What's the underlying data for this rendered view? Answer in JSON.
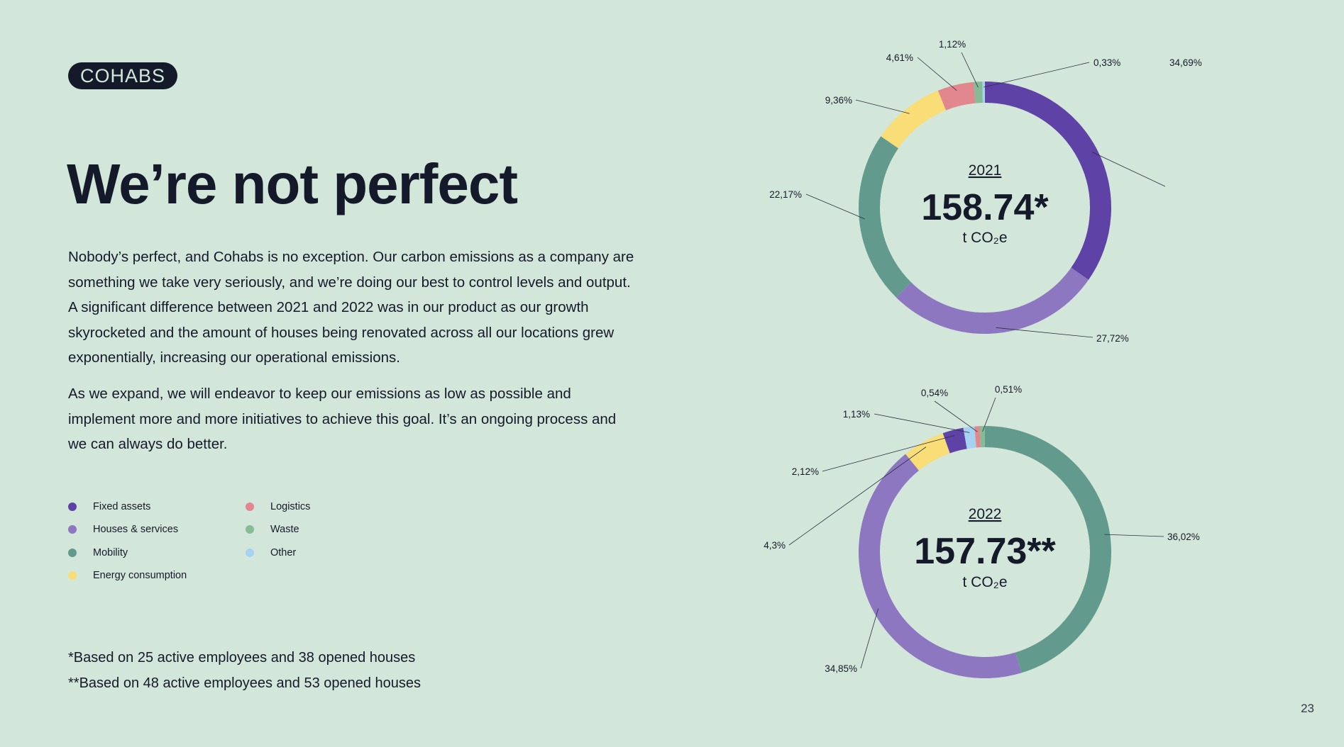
{
  "logo": "COHABS",
  "title": "We’re not perfect",
  "paragraphs": [
    "Nobody’s perfect, and Cohabs is no exception. Our carbon emissions as a company are something we take very seriously, and we’re doing our best to control levels and output. A significant difference between 2021 and 2022 was in our product as our growth skyrocketed and the amount of houses being renovated across all our locations grew exponentially, increasing our operational emissions.",
    "As we expand, we will endeavor to keep our emissions as low as possible and implement more and more initiatives to achieve this goal. It’s an ongoing process and we can always do better."
  ],
  "legend": [
    {
      "label": "Fixed assets",
      "color": "#5e42a6"
    },
    {
      "label": "Houses & services",
      "color": "#8c77c0"
    },
    {
      "label": "Mobility",
      "color": "#629b8d"
    },
    {
      "label": "Energy consumption",
      "color": "#f9dd77"
    },
    {
      "label": "Logistics",
      "color": "#e3878f"
    },
    {
      "label": "Waste",
      "color": "#86bc95"
    },
    {
      "label": "Other",
      "color": "#a4d2f0"
    }
  ],
  "footnotes": [
    "*Based on 25 active employees and 38 opened houses",
    "**Based on 48 active employees and 53 opened houses"
  ],
  "page_number": "23",
  "chart_data": [
    {
      "type": "pie",
      "donut": true,
      "year": "2021",
      "total": "158.74*",
      "unit": "t CO₂e",
      "slices": [
        {
          "category": "Fixed assets",
          "value": 34.69,
          "label": "34,69%"
        },
        {
          "category": "Houses & services",
          "value": 27.72,
          "label": "27,72%"
        },
        {
          "category": "Mobility",
          "value": 22.17,
          "label": "22,17%"
        },
        {
          "category": "Energy consumption",
          "value": 9.36,
          "label": "9,36%"
        },
        {
          "category": "Logistics",
          "value": 4.61,
          "label": "4,61%"
        },
        {
          "category": "Waste",
          "value": 1.12,
          "label": "1,12%"
        },
        {
          "category": "Other",
          "value": 0.33,
          "label": "0,33%"
        }
      ]
    },
    {
      "type": "pie",
      "donut": true,
      "year": "2022",
      "total": "157.73**",
      "unit": "t CO₂e",
      "slices": [
        {
          "category": "Mobility",
          "value": 36.02,
          "label": "36,02%"
        },
        {
          "category": "Houses & services",
          "value": 34.85,
          "label": "34,85%"
        },
        {
          "category": "Energy consumption",
          "value": 4.3,
          "label": "4,3%"
        },
        {
          "category": "Fixed assets",
          "value": 2.12,
          "label": "2,12%"
        },
        {
          "category": "Other",
          "value": 1.13,
          "label": "1,13%"
        },
        {
          "category": "Logistics",
          "value": 0.54,
          "label": "0,54%"
        },
        {
          "category": "Waste",
          "value": 0.51,
          "label": "0,51%"
        }
      ]
    }
  ]
}
